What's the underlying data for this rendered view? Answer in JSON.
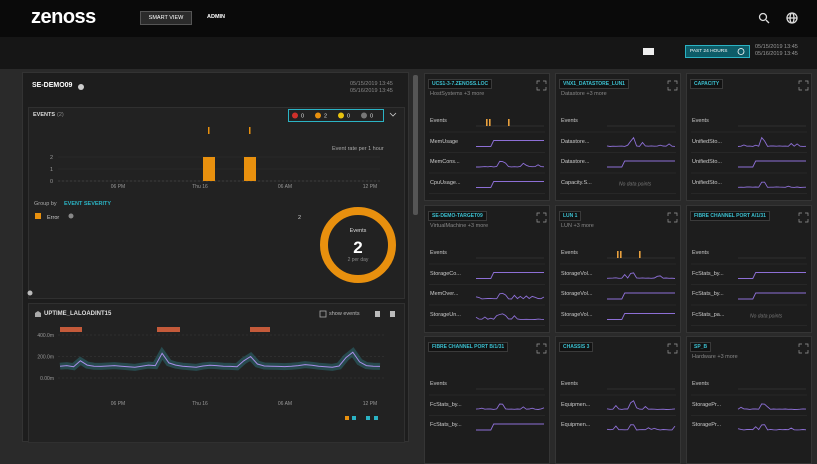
{
  "nav": {
    "logo": "zenoss",
    "tabs": [
      "SMART VIEW",
      "ADMIN"
    ]
  },
  "toolbar": {
    "range": "PAST 24 HOURS",
    "start": "05/15/2019 13:45",
    "end": "05/16/2019 13:45"
  },
  "device": {
    "name": "SE-DEMO09",
    "start": "05/15/2019 13:45",
    "end": "05/16/2019 13:45",
    "events": {
      "title": "EVENTS",
      "count": "(2)",
      "severity_counts": [
        0,
        2,
        0,
        0
      ],
      "rate_label": "Event rate per 1 hour",
      "chart": {
        "type": "bar",
        "values": [
          2,
          2
        ],
        "ylim": [
          0,
          2
        ],
        "yticks": [
          0,
          1,
          2
        ],
        "xticks": [
          "06 PM",
          "Thu 16",
          "06 AM",
          "12 PM"
        ]
      },
      "group_by_label": "Group by",
      "group_by": "EVENT SEVERITY",
      "legend": [
        {
          "name": "Error",
          "count": 2
        }
      ],
      "donut": {
        "label": "Events",
        "total": 2,
        "rate": "2 per day"
      }
    },
    "metric": {
      "title": "UPTIME_LALOADINT15",
      "show_events": "show events",
      "chart": {
        "type": "line",
        "ylim": [
          0,
          400
        ],
        "yticks": [
          {
            "value": 0,
            "label": "0.00m"
          },
          {
            "value": 200,
            "label": "200.0m"
          },
          {
            "value": 400,
            "label": "400.0m"
          }
        ],
        "xticks": [
          "06 PM",
          "Thu 16",
          "06 AM",
          "12 PM"
        ],
        "values": [
          110,
          115,
          105,
          160,
          120,
          110,
          108,
          112,
          115,
          110,
          105,
          100,
          110,
          120,
          115,
          230,
          140,
          120,
          110,
          105,
          100,
          112,
          118,
          115,
          110,
          108,
          104,
          160,
          200,
          130,
          112,
          110,
          108,
          106,
          110,
          115,
          125,
          118,
          110,
          105,
          100,
          112,
          190,
          240,
          150,
          115,
          110,
          108
        ]
      }
    }
  },
  "cards": [
    {
      "title": "UCS1-3-7.ZENOSS.LOC",
      "subtitle": "HostSystems +3 more",
      "rows": [
        {
          "label": "Events"
        },
        {
          "label": "MemUsage"
        },
        {
          "label": "MemCons..."
        },
        {
          "label": "CpuUsage..."
        }
      ]
    },
    {
      "title": "VNX1_DATASTORE_LUN1",
      "subtitle": "Datastore +3 more",
      "rows": [
        {
          "label": "Events"
        },
        {
          "label": "Datastore..."
        },
        {
          "label": "Datastore..."
        },
        {
          "label": "Capacity.S...",
          "note": "No data points"
        }
      ]
    },
    {
      "title": "CAPACITY",
      "rows": [
        {
          "label": "Events"
        },
        {
          "label": "UnifiedSto..."
        },
        {
          "label": "UnifiedSto..."
        },
        {
          "label": "UnifiedSto..."
        }
      ]
    },
    {
      "title": "SE-DEMO-TARGET09",
      "subtitle": "VirtualMachine +3 more",
      "rows": [
        {
          "label": "Events"
        },
        {
          "label": "StorageCo..."
        },
        {
          "label": "MemOver..."
        },
        {
          "label": "StorageUn..."
        }
      ]
    },
    {
      "title": "LUN 1",
      "subtitle": "LUN +3 more",
      "rows": [
        {
          "label": "Events"
        },
        {
          "label": "StorageVol..."
        },
        {
          "label": "StorageVol..."
        },
        {
          "label": "StorageVol..."
        }
      ]
    },
    {
      "title": "FIBRE CHANNEL PORT A/1/31",
      "rows": [
        {
          "label": "Events"
        },
        {
          "label": "FcStats_by..."
        },
        {
          "label": "FcStats_by..."
        },
        {
          "label": "FcStats_pa...",
          "note": "No data points"
        }
      ]
    },
    {
      "title": "FIBRE CHANNEL PORT B/1/31",
      "rows": [
        {
          "label": "Events"
        },
        {
          "label": "FcStats_by..."
        },
        {
          "label": "FcStats_by..."
        }
      ]
    },
    {
      "title": "CHASSIS 3",
      "rows": [
        {
          "label": "Events"
        },
        {
          "label": "Equipmen..."
        },
        {
          "label": "Equipmen..."
        }
      ]
    },
    {
      "title": "SP_B",
      "subtitle": "Hardware +3 more",
      "rows": [
        {
          "label": "Events"
        },
        {
          "label": "StoragePr..."
        },
        {
          "label": "StoragePr..."
        }
      ]
    }
  ]
}
